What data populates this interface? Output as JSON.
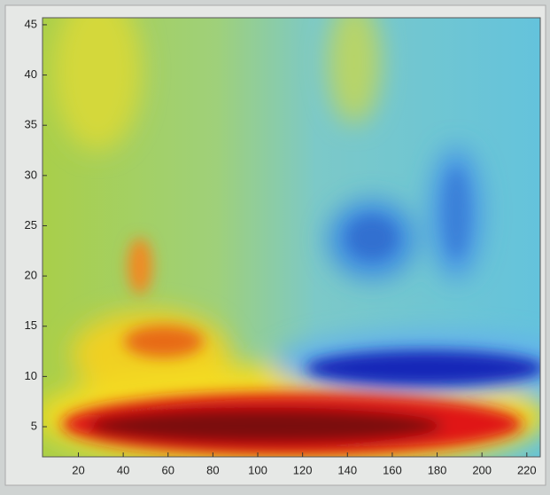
{
  "chart_data": {
    "type": "heatmap",
    "xlim": [
      4,
      226
    ],
    "xticks": [
      20,
      40,
      60,
      80,
      100,
      120,
      140,
      160,
      180,
      200,
      220
    ],
    "ylim": [
      2,
      45.7
    ],
    "yticks": [
      5,
      10,
      15,
      20,
      25,
      30,
      35,
      40,
      45
    ]
  }
}
